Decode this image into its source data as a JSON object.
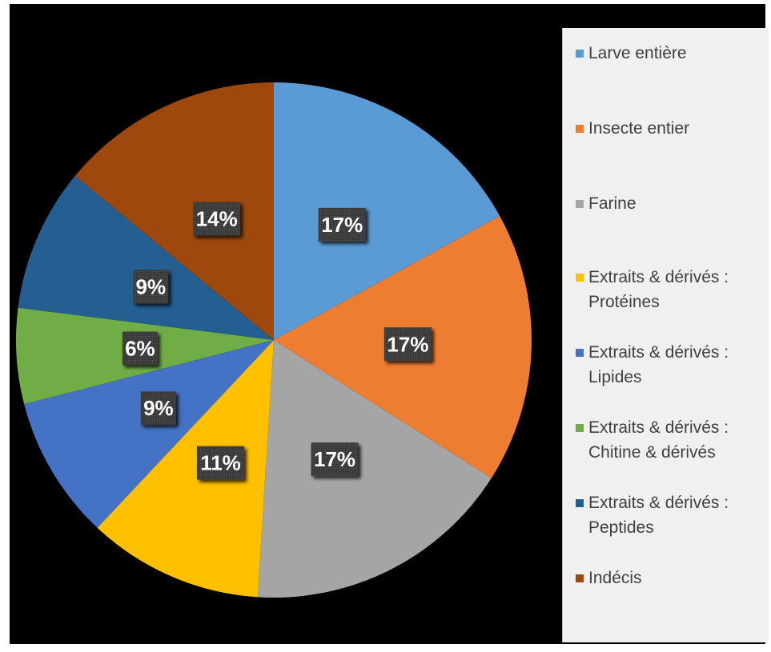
{
  "chart_data": {
    "type": "pie",
    "categories": [
      "Larve entière",
      "Insecte entier",
      "Farine",
      "Extraits & dérivés : Protéines",
      "Extraits & dérivés : Lipides",
      "Extraits & dérivés : Chitine & dérivés",
      "Extraits & dérivés : Peptides",
      "Indécis"
    ],
    "legend_lines": [
      "Larve entière",
      "Insecte entier",
      "Farine",
      "Extraits & dérivés :\nProtéines",
      "Extraits & dérivés :\nLipides",
      "Extraits & dérivés :\nChitine & dérivés",
      "Extraits & dérivés :\nPeptides",
      "Indécis"
    ],
    "values": [
      17,
      17,
      17,
      11,
      9,
      6,
      9,
      14
    ],
    "data_labels": [
      "17%",
      "17%",
      "17%",
      "11%",
      "9%",
      "6%",
      "9%",
      "14%"
    ],
    "colors": [
      "#5b9bd5",
      "#ed7d31",
      "#a5a5a5",
      "#ffc000",
      "#4472c4",
      "#70ad47",
      "#255e91",
      "#9e480e"
    ],
    "legend_position": "right",
    "background": "#000000",
    "legend_background": "#f0f0f0"
  }
}
